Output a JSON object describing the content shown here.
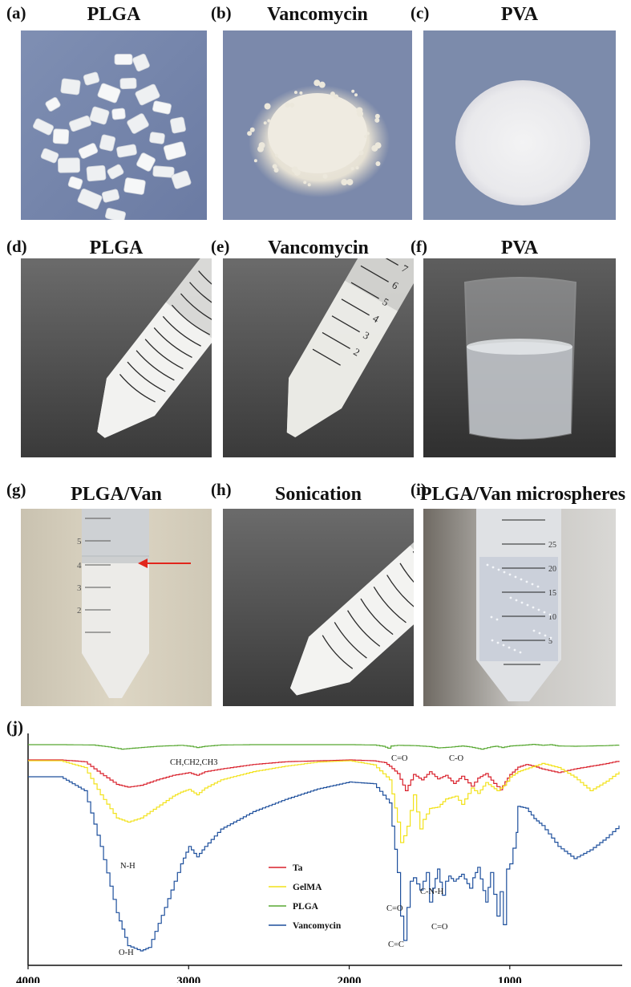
{
  "panels": [
    {
      "letter": "(a)",
      "title": "PLGA"
    },
    {
      "letter": "(b)",
      "title": "Vancomycin"
    },
    {
      "letter": "(c)",
      "title": "PVA"
    },
    {
      "letter": "(d)",
      "title": "PLGA"
    },
    {
      "letter": "(e)",
      "title": "Vancomycin"
    },
    {
      "letter": "(f)",
      "title": "PVA"
    },
    {
      "letter": "(g)",
      "title": "PLGA/Van"
    },
    {
      "letter": "(h)",
      "title": "Sonication"
    },
    {
      "letter": "(i)",
      "title": "PLGA/Van microspheres"
    }
  ],
  "tube_marks": {
    "e": [
      "7",
      "6",
      "5",
      "4",
      "3",
      "2"
    ],
    "g": [
      "5",
      "4",
      "3",
      "2"
    ],
    "i": [
      "25",
      "20",
      "15",
      "10",
      "5"
    ]
  },
  "colors": {
    "Ta": "#d9202b",
    "GelMA": "#f2e21a",
    "PLGA": "#58a832",
    "Vancomycin": "#1d4f9c",
    "arrow": "#e1261c"
  },
  "chart_data": {
    "type": "line",
    "panel_label": "(j)",
    "xlabel": "",
    "ylabel": "",
    "xlim": [
      4000,
      300
    ],
    "x_tick_labels": [
      "4000",
      "3000",
      "2000",
      "1000"
    ],
    "legend": [
      "Ta",
      "GelMA",
      "PLGA",
      "Vancomycin"
    ],
    "legend_placement": "center",
    "series": [
      {
        "name": "PLGA",
        "x": [
          4000,
          3800,
          3600,
          3500,
          3420,
          3350,
          3200,
          3050,
          2990,
          2950,
          2900,
          2800,
          2600,
          2300,
          2000,
          1850,
          1790,
          1760,
          1740,
          1700,
          1600,
          1500,
          1450,
          1380,
          1300,
          1250,
          1180,
          1120,
          1090,
          1050,
          1000,
          900,
          860,
          800,
          750,
          700,
          600,
          500,
          400,
          320
        ],
        "y": [
          1.0,
          1.0,
          0.99,
          0.93,
          0.86,
          0.89,
          0.95,
          0.98,
          0.95,
          0.91,
          0.95,
          0.99,
          1.0,
          1.0,
          1.0,
          0.99,
          0.95,
          0.89,
          0.96,
          0.98,
          0.97,
          0.94,
          0.9,
          0.92,
          0.96,
          0.93,
          0.86,
          0.93,
          0.95,
          0.91,
          0.96,
          0.99,
          1.01,
          0.98,
          1.0,
          0.96,
          0.95,
          0.96,
          0.97,
          0.99
        ]
      },
      {
        "name": "Ta",
        "x": [
          4000,
          3800,
          3650,
          3550,
          3450,
          3380,
          3300,
          3200,
          3100,
          3000,
          2950,
          2900,
          2800,
          2600,
          2400,
          2200,
          2000,
          1850,
          1780,
          1750,
          1700,
          1650,
          1600,
          1550,
          1500,
          1450,
          1400,
          1350,
          1300,
          1240,
          1200,
          1150,
          1100,
          1060,
          1030,
          1000,
          950,
          900,
          850,
          800,
          700,
          600,
          500,
          400,
          320
        ],
        "y": [
          1.0,
          1.0,
          0.98,
          0.85,
          0.73,
          0.7,
          0.72,
          0.78,
          0.83,
          0.86,
          0.83,
          0.87,
          0.9,
          0.95,
          0.98,
          0.99,
          1.0,
          0.99,
          0.97,
          0.93,
          0.85,
          0.66,
          0.84,
          0.78,
          0.87,
          0.79,
          0.83,
          0.74,
          0.82,
          0.71,
          0.8,
          0.85,
          0.74,
          0.67,
          0.76,
          0.84,
          0.92,
          0.95,
          0.93,
          0.9,
          0.86,
          0.9,
          0.93,
          0.96,
          0.99
        ]
      },
      {
        "name": "GelMA",
        "x": [
          4000,
          3800,
          3650,
          3550,
          3450,
          3380,
          3300,
          3200,
          3100,
          3050,
          3000,
          2950,
          2900,
          2800,
          2600,
          2400,
          2200,
          2000,
          1850,
          1750,
          1700,
          1680,
          1660,
          1640,
          1600,
          1560,
          1540,
          1500,
          1450,
          1400,
          1340,
          1300,
          1240,
          1200,
          1150,
          1080,
          1040,
          1000,
          950,
          900,
          800,
          700,
          600,
          500,
          400,
          320
        ],
        "y": [
          1.0,
          1.0,
          0.95,
          0.75,
          0.58,
          0.55,
          0.58,
          0.66,
          0.74,
          0.77,
          0.79,
          0.75,
          0.8,
          0.86,
          0.92,
          0.96,
          0.99,
          1.0,
          0.97,
          0.86,
          0.55,
          0.4,
          0.45,
          0.52,
          0.75,
          0.5,
          0.57,
          0.65,
          0.66,
          0.72,
          0.74,
          0.68,
          0.8,
          0.76,
          0.84,
          0.78,
          0.82,
          0.88,
          0.92,
          0.94,
          0.98,
          0.95,
          0.88,
          0.78,
          0.85,
          0.92
        ]
      },
      {
        "name": "Vancomycin",
        "x": [
          4000,
          3800,
          3650,
          3550,
          3450,
          3380,
          3300,
          3250,
          3150,
          3050,
          3000,
          2950,
          2900,
          2800,
          2600,
          2400,
          2200,
          2000,
          1850,
          1750,
          1700,
          1680,
          1660,
          1640,
          1620,
          1600,
          1560,
          1520,
          1500,
          1480,
          1450,
          1420,
          1400,
          1380,
          1350,
          1300,
          1250,
          1230,
          1200,
          1150,
          1120,
          1080,
          1060,
          1040,
          1020,
          1000,
          960,
          950,
          900,
          850,
          800,
          700,
          600,
          500,
          400,
          320
        ],
        "y": [
          1.0,
          1.0,
          0.92,
          0.6,
          0.22,
          0.03,
          0.0,
          0.02,
          0.25,
          0.5,
          0.6,
          0.54,
          0.6,
          0.7,
          0.8,
          0.87,
          0.93,
          0.97,
          0.96,
          0.85,
          0.45,
          0.2,
          0.06,
          0.25,
          0.4,
          0.42,
          0.35,
          0.45,
          0.28,
          0.36,
          0.47,
          0.32,
          0.4,
          0.43,
          0.4,
          0.44,
          0.36,
          0.42,
          0.48,
          0.28,
          0.45,
          0.2,
          0.34,
          0.15,
          0.47,
          0.5,
          0.68,
          0.83,
          0.82,
          0.76,
          0.72,
          0.6,
          0.53,
          0.58,
          0.65,
          0.72
        ]
      }
    ],
    "annotations": [
      "CH,CH2,CH3",
      "C=O",
      "C-O",
      "N-H",
      "C=O",
      "C-N-H",
      "C=O",
      "O-H",
      "C=C"
    ]
  }
}
